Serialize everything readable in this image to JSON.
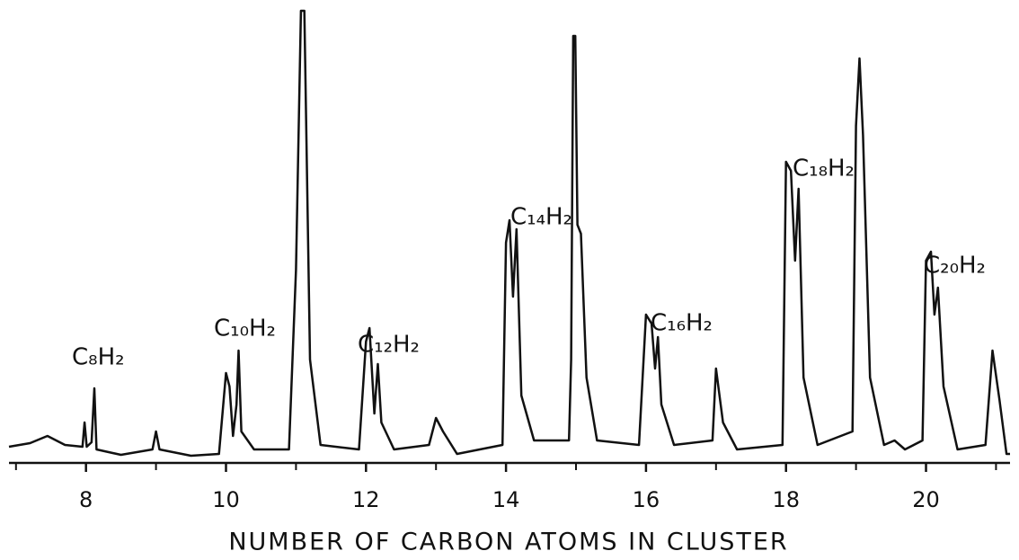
{
  "chart_data": {
    "type": "line",
    "x_label": "NUMBER OF CARBON ATOMS IN CLUSTER",
    "xlim": [
      6.9,
      21.2
    ],
    "xticks": [
      8,
      10,
      12,
      14,
      16,
      18,
      20
    ],
    "xminor": [
      7,
      9,
      11,
      13,
      15,
      17,
      19,
      21
    ],
    "ylim": [
      0,
      102
    ],
    "color": "#111111",
    "x": [
      6.9,
      7.2,
      7.45,
      7.7,
      7.95,
      7.98,
      8.01,
      8.08,
      8.12,
      8.15,
      8.5,
      8.95,
      9.0,
      9.05,
      9.5,
      9.9,
      10.0,
      10.05,
      10.1,
      10.15,
      10.18,
      10.22,
      10.4,
      10.9,
      11.0,
      11.07,
      11.12,
      11.2,
      11.35,
      11.9,
      12.0,
      12.05,
      12.12,
      12.17,
      12.22,
      12.4,
      12.9,
      13.0,
      13.1,
      13.3,
      13.95,
      14.0,
      14.05,
      14.1,
      14.15,
      14.22,
      14.4,
      14.9,
      14.93,
      14.96,
      14.99,
      15.02,
      15.07,
      15.15,
      15.3,
      15.9,
      16.0,
      16.08,
      16.13,
      16.17,
      16.22,
      16.4,
      16.95,
      17.0,
      17.1,
      17.3,
      17.95,
      18.0,
      18.07,
      18.13,
      18.18,
      18.25,
      18.45,
      18.95,
      19.0,
      19.05,
      19.1,
      19.2,
      19.4,
      19.55,
      19.7,
      19.95,
      20.0,
      20.07,
      20.12,
      20.17,
      20.25,
      20.45,
      20.85,
      20.95,
      21.05,
      21.15,
      21.2
    ],
    "values": [
      3.6,
      4.4,
      6,
      4,
      3.6,
      9,
      3.6,
      4.6,
      16.6,
      3,
      1.8,
      3,
      7,
      3,
      1.6,
      2,
      20,
      17,
      6,
      13,
      25,
      7,
      3,
      3,
      43,
      100.6,
      100.6,
      23,
      4,
      3,
      27,
      30,
      11,
      22,
      9,
      3,
      4,
      10,
      7,
      2,
      4,
      49,
      54,
      37,
      52,
      15,
      5,
      5,
      23,
      95,
      95,
      53,
      51,
      19,
      5,
      4,
      33,
      31,
      21,
      28,
      13,
      4,
      5,
      21,
      9,
      3,
      4,
      67,
      65,
      45,
      61,
      19,
      4,
      7,
      75,
      90,
      73,
      19,
      4,
      5,
      3,
      5,
      45,
      47,
      33,
      39,
      17,
      3,
      4,
      25,
      14,
      2,
      2
    ],
    "annotations": [
      "C₈H₂",
      "C₁₀H₂",
      "C₁₂H₂",
      "C₁₄H₂",
      "C₁₆H₂",
      "C₁₈H₂",
      "C₂₀H₂"
    ]
  }
}
